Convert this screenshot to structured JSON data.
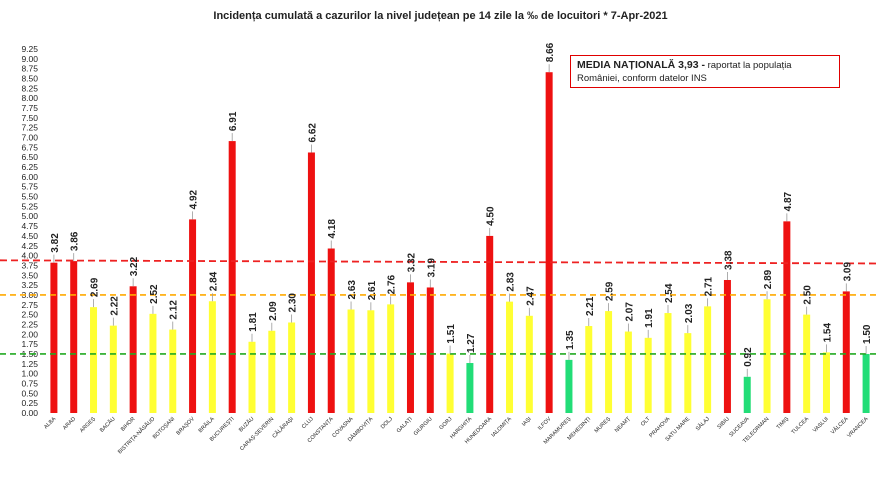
{
  "chart_data": {
    "type": "bar",
    "title": "Incidența cumulată a cazurilor la nivel județean pe 14 zile la ‰ de locuitori *  7-Apr-2021",
    "xlabel": "",
    "ylabel": "",
    "ylim": [
      0,
      9.25
    ],
    "ytick_step": 0.25,
    "grid": false,
    "categories": [
      "ALBA",
      "ARAD",
      "ARGEȘ",
      "BACĂU",
      "BIHOR",
      "BISTRIȚA-NĂSĂUD",
      "BOTOȘANI",
      "BRAȘOV",
      "BRĂILA",
      "BUCUREȘTI",
      "BUZĂU",
      "CARAȘ-SEVERIN",
      "CĂLĂRAȘI",
      "CLUJ",
      "CONSTANȚA",
      "COVASNA",
      "DÂMBOVIȚA",
      "DOLJ",
      "GALAȚI",
      "GIURGIU",
      "GORJ",
      "HARGHITA",
      "HUNEDOARA",
      "IALOMIȚA",
      "IAȘI",
      "ILFOV",
      "MARAMUREȘ",
      "MEHEDINȚI",
      "MUREȘ",
      "NEAMȚ",
      "OLT",
      "PRAHOVA",
      "SATU MARE",
      "SĂLAJ",
      "SIBIU",
      "SUCEAVA",
      "TELEORMAN",
      "TIMIȘ",
      "TULCEA",
      "VASLUI",
      "VÂLCEA",
      "VRANCEA"
    ],
    "values": [
      3.82,
      3.86,
      2.69,
      2.22,
      3.22,
      2.52,
      2.12,
      4.92,
      2.84,
      6.91,
      1.81,
      2.09,
      2.3,
      6.62,
      4.18,
      2.63,
      2.61,
      2.76,
      3.32,
      3.19,
      1.51,
      1.27,
      4.5,
      2.83,
      2.47,
      8.66,
      1.35,
      2.21,
      2.59,
      2.07,
      1.91,
      2.54,
      2.03,
      2.71,
      3.38,
      0.92,
      2.89,
      4.87,
      2.5,
      1.54,
      3.09,
      1.5
    ],
    "value_labels": [
      "3.82",
      "3.86",
      "2.69",
      "2.22",
      "3.22",
      "2.52",
      "2.12",
      "4.92",
      "2.84",
      "6.91",
      "1.81",
      "2.09",
      "2.30",
      "6.62",
      "4.18",
      "2.63",
      "2.61",
      "2.76",
      "3.32",
      "3.19",
      "1.51",
      "1.27",
      "4.50",
      "2.83",
      "2.47",
      "8.66",
      "1.35",
      "2.21",
      "2.59",
      "2.07",
      "1.91",
      "2.54",
      "2.03",
      "2.71",
      "3.38",
      "0.92",
      "2.89",
      "4.87",
      "2.50",
      "1.54",
      "3.09",
      "1.50"
    ],
    "colors": {
      "red": "#ee1111",
      "yellow": "#ffff33",
      "green": "#22dd77"
    },
    "thresholds": [
      {
        "value": 3.0,
        "color": "#ffaa00"
      },
      {
        "value": 1.5,
        "color": "#22aa22"
      }
    ],
    "national_average_line": {
      "start": 3.88,
      "end": 3.8,
      "color": "#ee2222"
    },
    "annotation": {
      "bold_text": "MEDIA NAȚIONALĂ  3,93 -",
      "text": " raportat la populația României, conform datelor INS"
    }
  }
}
